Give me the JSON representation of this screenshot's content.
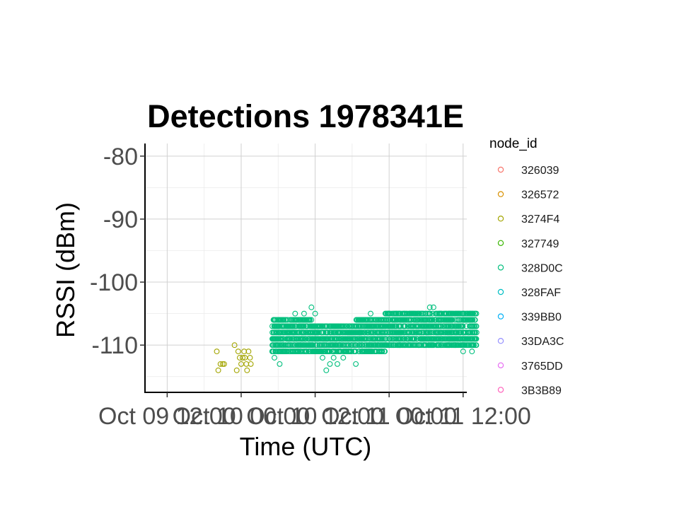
{
  "chart_data": {
    "type": "scatter",
    "title": "Detections 1978341E",
    "xlabel": "Time (UTC)",
    "ylabel": "RSSI (dBm)",
    "ylim": [
      -117.5,
      -78
    ],
    "xlim": [
      -0.3,
      4.05
    ],
    "y_ticks": [
      -80,
      -90,
      -100,
      -110
    ],
    "y_tick_labels": [
      "-80",
      "-90",
      "-100",
      "-110"
    ],
    "x_ticks": [
      0,
      1,
      2,
      3,
      4
    ],
    "x_tick_labels": [
      "Oct 09 12:00",
      "Oct 10 00:00",
      "Oct 10 12:00",
      "Oct 11 00:00",
      "Oct 11 12:00"
    ],
    "grid": true,
    "marker": "open-circle",
    "legend": {
      "title": "node_id",
      "placement": "right",
      "entries": [
        {
          "name": "326039",
          "color": "#F8766D"
        },
        {
          "name": "326572",
          "color": "#D89000"
        },
        {
          "name": "3274F4",
          "color": "#A3A500"
        },
        {
          "name": "327749",
          "color": "#39B600"
        },
        {
          "name": "328D0C",
          "color": "#00BF7D"
        },
        {
          "name": "328FAF",
          "color": "#00BFC4"
        },
        {
          "name": "339BB0",
          "color": "#00B0F6"
        },
        {
          "name": "33DA3C",
          "color": "#9590FF"
        },
        {
          "name": "3765DD",
          "color": "#E76BF3"
        },
        {
          "name": "3B3B89",
          "color": "#FF62BC"
        }
      ]
    },
    "series": [
      {
        "name": "3274F4",
        "color": "#A3A500",
        "x": [
          0.67,
          0.69,
          0.72,
          0.75,
          0.77,
          0.91,
          0.94,
          0.96,
          0.98,
          1.0,
          1.02,
          1.04,
          1.05,
          1.07,
          1.08,
          1.1,
          1.12,
          1.13
        ],
        "y": [
          -111,
          -114,
          -113,
          -113,
          -113,
          -110,
          -114,
          -111,
          -112,
          -113,
          -112,
          -111,
          -112,
          -113,
          -114,
          -111,
          -112,
          -113
        ]
      },
      {
        "name": "328D0C",
        "color": "#00BF7D",
        "x_range": [
          1.42,
          4.18
        ],
        "baseline_min": -111,
        "baseline_max": -106,
        "points": [
          [
            1.45,
            -112
          ],
          [
            1.52,
            -113
          ],
          [
            1.62,
            -111
          ],
          [
            1.7,
            -108
          ],
          [
            1.73,
            -105
          ],
          [
            1.85,
            -105
          ],
          [
            1.92,
            -111
          ],
          [
            1.95,
            -104
          ],
          [
            2.0,
            -105
          ],
          [
            2.05,
            -111
          ],
          [
            2.1,
            -112
          ],
          [
            2.15,
            -114
          ],
          [
            2.2,
            -113
          ],
          [
            2.25,
            -112
          ],
          [
            2.3,
            -113
          ],
          [
            2.38,
            -112
          ],
          [
            2.45,
            -111
          ],
          [
            2.55,
            -113
          ],
          [
            2.6,
            -108
          ],
          [
            2.75,
            -105
          ],
          [
            2.85,
            -110
          ],
          [
            2.9,
            -110
          ],
          [
            3.0,
            -105
          ],
          [
            3.1,
            -105
          ],
          [
            3.15,
            -110
          ],
          [
            3.3,
            -105
          ],
          [
            3.4,
            -110
          ],
          [
            3.55,
            -104
          ],
          [
            3.6,
            -104
          ],
          [
            3.7,
            -110
          ],
          [
            3.8,
            -105
          ],
          [
            3.9,
            -110
          ],
          [
            4.0,
            -111
          ],
          [
            4.12,
            -111
          ]
        ]
      }
    ]
  }
}
